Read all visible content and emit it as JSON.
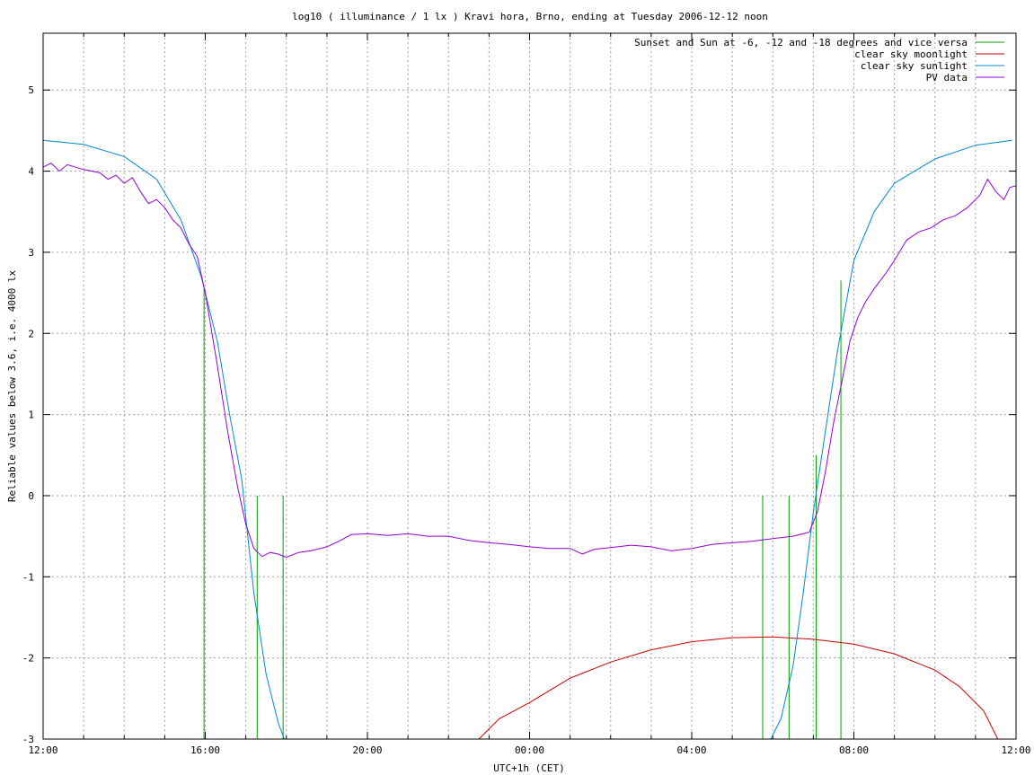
{
  "chart_data": {
    "type": "line",
    "title": "log10 ( illuminance / 1 lx ) Kravi hora, Brno, ending at Tuesday 2006-12-12 noon",
    "xlabel": "UTC+1h (CET)",
    "ylabel": "Reliable values below 3.6, i.e. 4000 lx",
    "xlim": [
      0,
      24
    ],
    "ylim": [
      -3,
      5.7
    ],
    "x_unit": "hours since 12:00 CET on 2006-12-11",
    "x_ticks": [
      {
        "value": 0,
        "label": "12:00"
      },
      {
        "value": 4,
        "label": "16:00"
      },
      {
        "value": 8,
        "label": "20:00"
      },
      {
        "value": 12,
        "label": "00:00"
      },
      {
        "value": 16,
        "label": "04:00"
      },
      {
        "value": 20,
        "label": "08:00"
      },
      {
        "value": 24,
        "label": "12:00"
      }
    ],
    "y_ticks": [
      -3,
      -2,
      -1,
      0,
      1,
      2,
      3,
      4,
      5
    ],
    "grid": true,
    "legend_position": "top-right",
    "series": [
      {
        "name": "Sunset and Sun at -6, -12 and -18 degrees and vice versa",
        "color": "#00a000",
        "kind": "vertical-markers",
        "markers": [
          {
            "x": 3.97,
            "y_top": 2.55
          },
          {
            "x": 5.28,
            "y_top": 0
          },
          {
            "x": 5.92,
            "y_top": 0
          },
          {
            "x": 17.75,
            "y_top": 0
          },
          {
            "x": 18.4,
            "y_top": 0
          },
          {
            "x": 19.07,
            "y_top": 0.5
          },
          {
            "x": 19.68,
            "y_top": 2.65
          }
        ]
      },
      {
        "name": "clear sky moonlight",
        "color": "#cc0000",
        "points": [
          [
            10.75,
            -3
          ],
          [
            11.25,
            -2.75
          ],
          [
            12,
            -2.55
          ],
          [
            13,
            -2.25
          ],
          [
            14,
            -2.05
          ],
          [
            15,
            -1.9
          ],
          [
            16,
            -1.8
          ],
          [
            17,
            -1.75
          ],
          [
            18,
            -1.74
          ],
          [
            19,
            -1.77
          ],
          [
            20,
            -1.83
          ],
          [
            21,
            -1.95
          ],
          [
            22,
            -2.15
          ],
          [
            22.6,
            -2.35
          ],
          [
            23.2,
            -2.65
          ],
          [
            23.55,
            -3
          ]
        ]
      },
      {
        "name": "clear sky sunlight",
        "color": "#0088cc",
        "points": [
          [
            0,
            4.38
          ],
          [
            1,
            4.33
          ],
          [
            2,
            4.18
          ],
          [
            2.8,
            3.9
          ],
          [
            3.4,
            3.4
          ],
          [
            3.9,
            2.7
          ],
          [
            4.3,
            1.9
          ],
          [
            4.6,
            1.0
          ],
          [
            4.9,
            0.2
          ],
          [
            5.2,
            -1.2
          ],
          [
            5.5,
            -2.2
          ],
          [
            5.8,
            -2.8
          ],
          [
            5.95,
            -3
          ],
          [
            17.95,
            -3
          ],
          [
            18.2,
            -2.75
          ],
          [
            18.5,
            -2.1
          ],
          [
            18.75,
            -1.2
          ],
          [
            19.0,
            -0.2
          ],
          [
            19.3,
            0.8
          ],
          [
            19.6,
            1.8
          ],
          [
            20.0,
            2.9
          ],
          [
            20.5,
            3.5
          ],
          [
            21,
            3.85
          ],
          [
            22,
            4.15
          ],
          [
            23,
            4.32
          ],
          [
            23.9,
            4.38
          ]
        ]
      },
      {
        "name": "PV data",
        "color": "#9400d3",
        "points": [
          [
            0,
            4.05
          ],
          [
            0.2,
            4.1
          ],
          [
            0.4,
            4.0
          ],
          [
            0.6,
            4.08
          ],
          [
            1.0,
            4.02
          ],
          [
            1.4,
            3.98
          ],
          [
            1.6,
            3.9
          ],
          [
            1.8,
            3.95
          ],
          [
            2.0,
            3.85
          ],
          [
            2.2,
            3.92
          ],
          [
            2.4,
            3.75
          ],
          [
            2.6,
            3.6
          ],
          [
            2.8,
            3.65
          ],
          [
            3.0,
            3.55
          ],
          [
            3.2,
            3.4
          ],
          [
            3.4,
            3.3
          ],
          [
            3.6,
            3.1
          ],
          [
            3.8,
            2.95
          ],
          [
            4.0,
            2.5
          ],
          [
            4.3,
            1.6
          ],
          [
            4.55,
            0.8
          ],
          [
            4.8,
            0.1
          ],
          [
            5.0,
            -0.35
          ],
          [
            5.2,
            -0.65
          ],
          [
            5.4,
            -0.75
          ],
          [
            5.6,
            -0.7
          ],
          [
            5.8,
            -0.72
          ],
          [
            6.0,
            -0.76
          ],
          [
            6.3,
            -0.7
          ],
          [
            6.6,
            -0.68
          ],
          [
            7.0,
            -0.63
          ],
          [
            7.3,
            -0.56
          ],
          [
            7.6,
            -0.48
          ],
          [
            8.0,
            -0.47
          ],
          [
            8.5,
            -0.49
          ],
          [
            9.0,
            -0.47
          ],
          [
            9.5,
            -0.5
          ],
          [
            10.0,
            -0.5
          ],
          [
            10.5,
            -0.55
          ],
          [
            11.0,
            -0.58
          ],
          [
            11.5,
            -0.6
          ],
          [
            12.0,
            -0.63
          ],
          [
            12.5,
            -0.65
          ],
          [
            13.0,
            -0.65
          ],
          [
            13.3,
            -0.72
          ],
          [
            13.6,
            -0.66
          ],
          [
            14.0,
            -0.64
          ],
          [
            14.5,
            -0.61
          ],
          [
            15.0,
            -0.63
          ],
          [
            15.5,
            -0.68
          ],
          [
            16.0,
            -0.65
          ],
          [
            16.5,
            -0.6
          ],
          [
            17.0,
            -0.58
          ],
          [
            17.5,
            -0.56
          ],
          [
            18.0,
            -0.53
          ],
          [
            18.5,
            -0.5
          ],
          [
            18.9,
            -0.45
          ],
          [
            19.1,
            -0.2
          ],
          [
            19.3,
            0.3
          ],
          [
            19.5,
            0.9
          ],
          [
            19.7,
            1.4
          ],
          [
            19.9,
            1.9
          ],
          [
            20.1,
            2.2
          ],
          [
            20.3,
            2.4
          ],
          [
            20.5,
            2.55
          ],
          [
            20.8,
            2.75
          ],
          [
            21.0,
            2.9
          ],
          [
            21.3,
            3.15
          ],
          [
            21.6,
            3.25
          ],
          [
            21.9,
            3.3
          ],
          [
            22.2,
            3.4
          ],
          [
            22.5,
            3.45
          ],
          [
            22.8,
            3.55
          ],
          [
            23.1,
            3.7
          ],
          [
            23.3,
            3.9
          ],
          [
            23.5,
            3.75
          ],
          [
            23.7,
            3.65
          ],
          [
            23.85,
            3.8
          ],
          [
            24,
            3.82
          ]
        ]
      }
    ]
  }
}
